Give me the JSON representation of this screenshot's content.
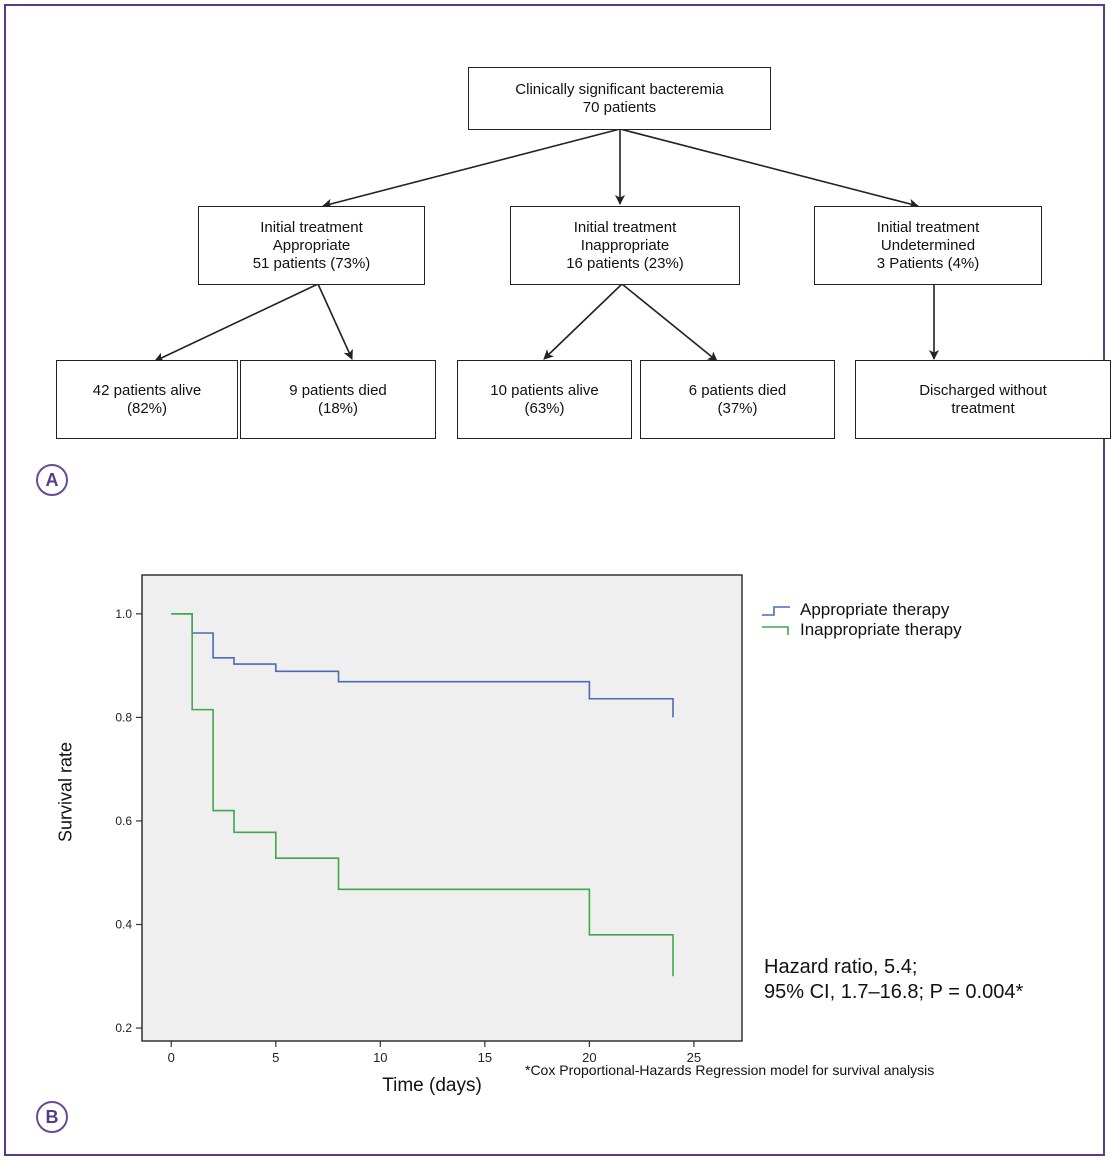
{
  "panel_a": {
    "label": "A",
    "top": {
      "line1": "Clinically significant bacteremia",
      "line2": "70 patients"
    },
    "branches": [
      {
        "line1": "Initial treatment",
        "line2": "Appropriate",
        "line3": "51 patients (73%)"
      },
      {
        "line1": "Initial treatment",
        "line2": "Inappropriate",
        "line3": "16 patients (23%)"
      },
      {
        "line1": "Initial treatment",
        "line2": "Undetermined",
        "line3": "3  Patients (4%)"
      }
    ],
    "outcomes": [
      {
        "line1": "42 patients alive",
        "line2": "(82%)"
      },
      {
        "line1": "9 patients died",
        "line2": "(18%)"
      },
      {
        "line1": "10 patients alive",
        "line2": "(63%)"
      },
      {
        "line1": "6 patients died",
        "line2": "(37%)"
      },
      {
        "line1": "Discharged without",
        "line2": "treatment"
      }
    ]
  },
  "panel_b": {
    "label": "B",
    "hazard_line1": "Hazard ratio, 5.4;",
    "hazard_line2": "95% CI, 1.7–16.8; P = 0.004*",
    "footnote": "*Cox Proportional-Hazards Regression model for survival analysis"
  },
  "chart_data": {
    "type": "line",
    "step": true,
    "xlabel": "Time (days)",
    "ylabel": "Survival rate",
    "xlim": [
      -1.4,
      27.3
    ],
    "ylim": [
      0.175,
      1.075
    ],
    "xticks": [
      0,
      5,
      10,
      15,
      20,
      25
    ],
    "yticks": [
      0.2,
      0.4,
      0.6,
      0.8,
      1.0
    ],
    "ytick_labels": [
      "0.2",
      "0.4",
      "0.6",
      "0.8",
      "1.0"
    ],
    "grid": false,
    "background": "#efefef",
    "legend_position": "outside-right",
    "series": [
      {
        "name": "Appropriate therapy",
        "color": "#4a6bb5",
        "x": [
          0,
          1,
          2,
          3,
          5,
          8,
          20,
          24,
          24
        ],
        "y": [
          1.0,
          0.963,
          0.915,
          0.903,
          0.889,
          0.869,
          0.836,
          0.836,
          0.8
        ]
      },
      {
        "name": "Inappropriate therapy",
        "color": "#3fa84a",
        "x": [
          0,
          1,
          2,
          3,
          5,
          8,
          20,
          24,
          24
        ],
        "y": [
          1.0,
          0.815,
          0.62,
          0.578,
          0.528,
          0.468,
          0.38,
          0.38,
          0.3
        ]
      }
    ]
  }
}
